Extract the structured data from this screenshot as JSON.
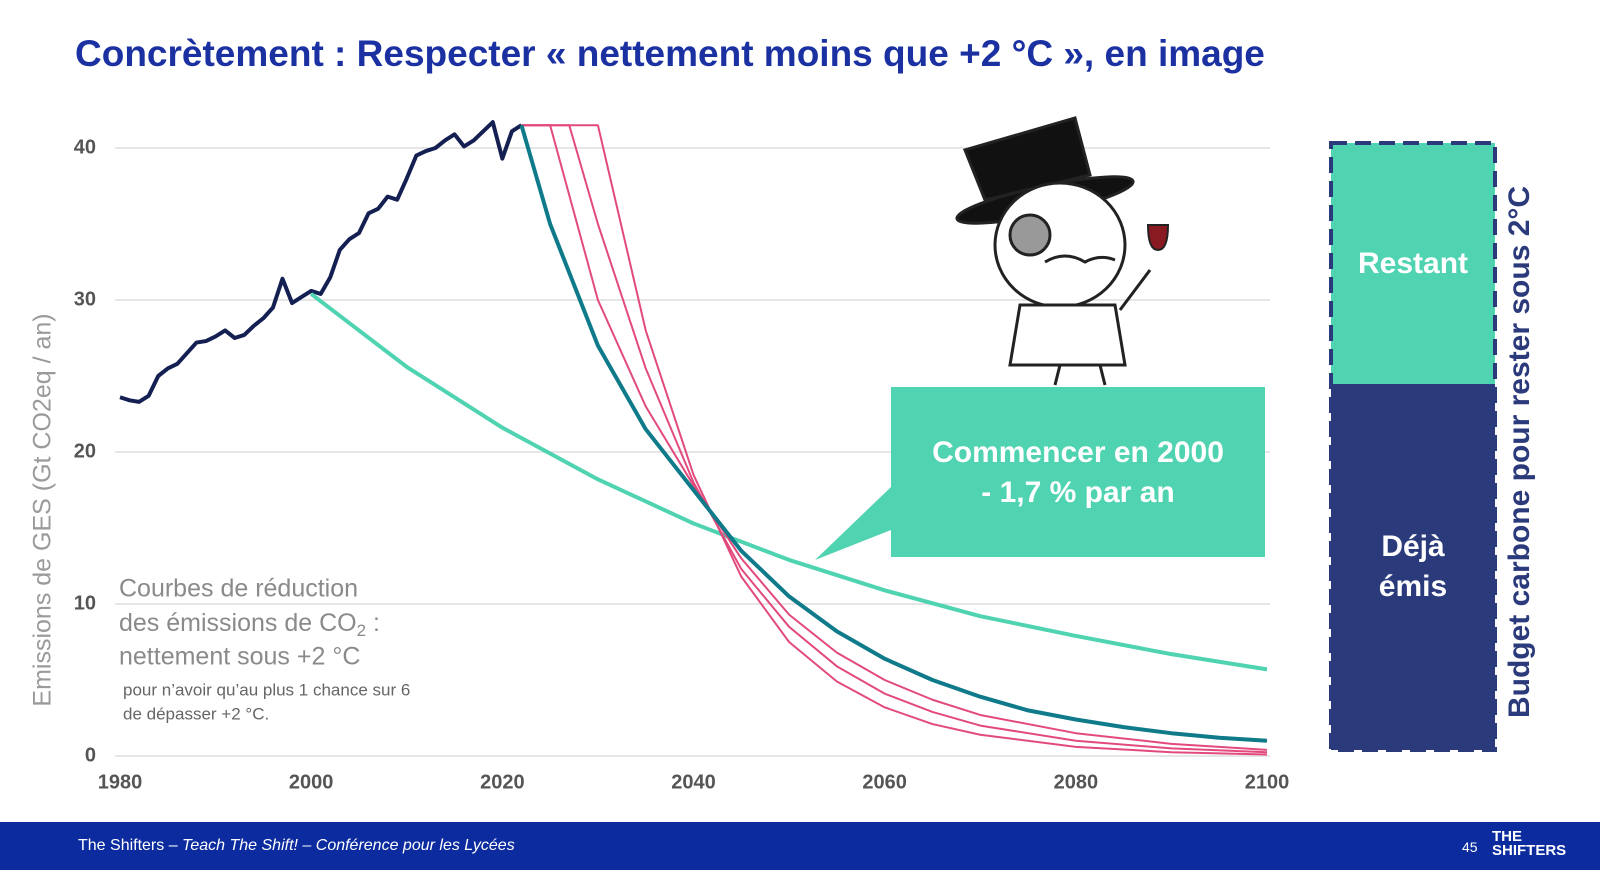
{
  "slide": {
    "title": "Concrètement : Respecter « nettement moins que +2 °C », en image",
    "footer": [
      "The Shifters – ",
      "Teach The Shift! – Conférence pour les Lycées"
    ],
    "page_number": "45",
    "logo": [
      "THE",
      "SHIFTERS"
    ]
  },
  "chart_data": {
    "type": "line",
    "y_label": "Emissions de GES (Gt CO2eq / an)",
    "xlim": [
      1980,
      2100
    ],
    "ylim": [
      0,
      42
    ],
    "xticks": [
      1980,
      2000,
      2020,
      2040,
      2060,
      2080,
      2100
    ],
    "yticks": [
      0,
      10,
      20,
      30,
      40
    ],
    "grid": true,
    "series": [
      {
        "color": "#141f52",
        "x": [
          1980,
          1981,
          1982,
          1983,
          1984,
          1985,
          1986,
          1987,
          1988,
          1989,
          1990,
          1991,
          1992,
          1993,
          1994,
          1995,
          1996,
          1997,
          1998,
          1999,
          2000,
          2001,
          2002,
          2003,
          2004,
          2005,
          2006,
          2007,
          2008,
          2009,
          2010,
          2011,
          2012,
          2013,
          2014,
          2015,
          2016,
          2017,
          2018,
          2019,
          2020,
          2021,
          2022
        ],
        "values": [
          23.6,
          23.4,
          23.3,
          23.7,
          25,
          25.5,
          25.8,
          26.5,
          27.2,
          27.3,
          27.6,
          28,
          27.5,
          27.7,
          28.3,
          28.8,
          29.5,
          31.4,
          29.8,
          30.2,
          30.6,
          30.4,
          31.5,
          33.3,
          34,
          34.4,
          35.7,
          36,
          36.8,
          36.6,
          38,
          39.5,
          39.8,
          40,
          40.5,
          40.9,
          40.1,
          40.5,
          41.1,
          41.7,
          39.3,
          41.1,
          41.5
        ]
      },
      {
        "color": "#4fd3b1",
        "x": [
          2000,
          2010,
          2020,
          2030,
          2040,
          2050,
          2060,
          2070,
          2080,
          2090,
          2100
        ],
        "values": [
          30.4,
          25.6,
          21.6,
          18.2,
          15.3,
          12.9,
          10.9,
          9.2,
          7.9,
          6.7,
          5.7
        ]
      },
      {
        "color": "#e24a7e",
        "x": [
          2022,
          2025,
          2030,
          2035,
          2040,
          2045,
          2050,
          2055,
          2060,
          2065,
          2070,
          2080,
          2090,
          2100
        ],
        "values": [
          41.5,
          41.5,
          30,
          23,
          17.8,
          13,
          9.3,
          6.8,
          5,
          3.7,
          2.7,
          1.5,
          0.8,
          0.4
        ]
      },
      {
        "color": "#e24a7e",
        "x": [
          2022,
          2027,
          2030,
          2035,
          2040,
          2045,
          2050,
          2055,
          2060,
          2065,
          2070,
          2080,
          2090,
          2100
        ],
        "values": [
          41.5,
          41.5,
          35,
          25.5,
          18,
          12.3,
          8.5,
          5.9,
          4.1,
          2.9,
          2,
          1,
          0.5,
          0.25
        ]
      },
      {
        "color": "#e24a7e",
        "x": [
          2022,
          2030,
          2035,
          2040,
          2045,
          2050,
          2055,
          2060,
          2065,
          2070,
          2080,
          2090,
          2100
        ],
        "values": [
          41.5,
          41.5,
          28,
          18.5,
          11.8,
          7.5,
          4.9,
          3.2,
          2.1,
          1.4,
          0.6,
          0.25,
          0.1
        ]
      },
      {
        "color": "#0f7a8a",
        "x": [
          2022,
          2025,
          2030,
          2035,
          2040,
          2045,
          2050,
          2055,
          2060,
          2065,
          2070,
          2075,
          2080,
          2085,
          2090,
          2095,
          2100
        ],
        "values": [
          41.5,
          35,
          27,
          21.5,
          17.5,
          13.5,
          10.5,
          8.2,
          6.4,
          5,
          3.9,
          3,
          2.4,
          1.9,
          1.5,
          1.2,
          1
        ]
      }
    ],
    "note": {
      "line1": "Courbes de réduction",
      "line2": "des émissions de CO",
      "sub": "2",
      "after": " :",
      "line3": "nettement sous +2 °C",
      "small1": "pour n’avoir qu’au plus 1 chance sur 6",
      "small2": "de dépasser +2 °C."
    },
    "callout": [
      "Commencer en 2000",
      "- 1,7 % par an"
    ]
  },
  "budget": {
    "label": "Budget carbone pour rester sous 2°C",
    "top": "Restant",
    "bottom": [
      "Déjà",
      "émis"
    ]
  }
}
